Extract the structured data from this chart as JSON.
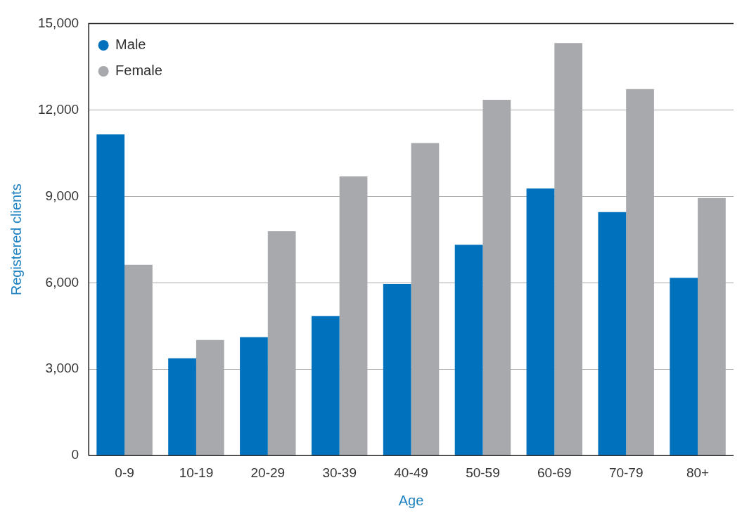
{
  "chart_data": {
    "type": "bar",
    "xlabel": "Age",
    "ylabel": "Registered clients",
    "categories": [
      "0-9",
      "10-19",
      "20-29",
      "30-39",
      "40-49",
      "50-59",
      "60-69",
      "70-79",
      "80+"
    ],
    "series": [
      {
        "name": "Male",
        "color": "#0071bc",
        "values": [
          11150,
          3380,
          4110,
          4840,
          5960,
          7320,
          9270,
          8450,
          6170
        ]
      },
      {
        "name": "Female",
        "color": "#a7a9ac",
        "values": [
          6620,
          4010,
          7790,
          9690,
          10850,
          12350,
          14320,
          12720,
          8940
        ]
      }
    ],
    "ylim": [
      0,
      15000
    ],
    "yticks": [
      {
        "value": 0,
        "label": "0"
      },
      {
        "value": 3000,
        "label": "3,000"
      },
      {
        "value": 6000,
        "label": "6,000"
      },
      {
        "value": 9000,
        "label": "9,000"
      },
      {
        "value": 12000,
        "label": "12,000"
      },
      {
        "value": 15000,
        "label": "15,000"
      }
    ],
    "grid": "y",
    "legend": "top left"
  }
}
